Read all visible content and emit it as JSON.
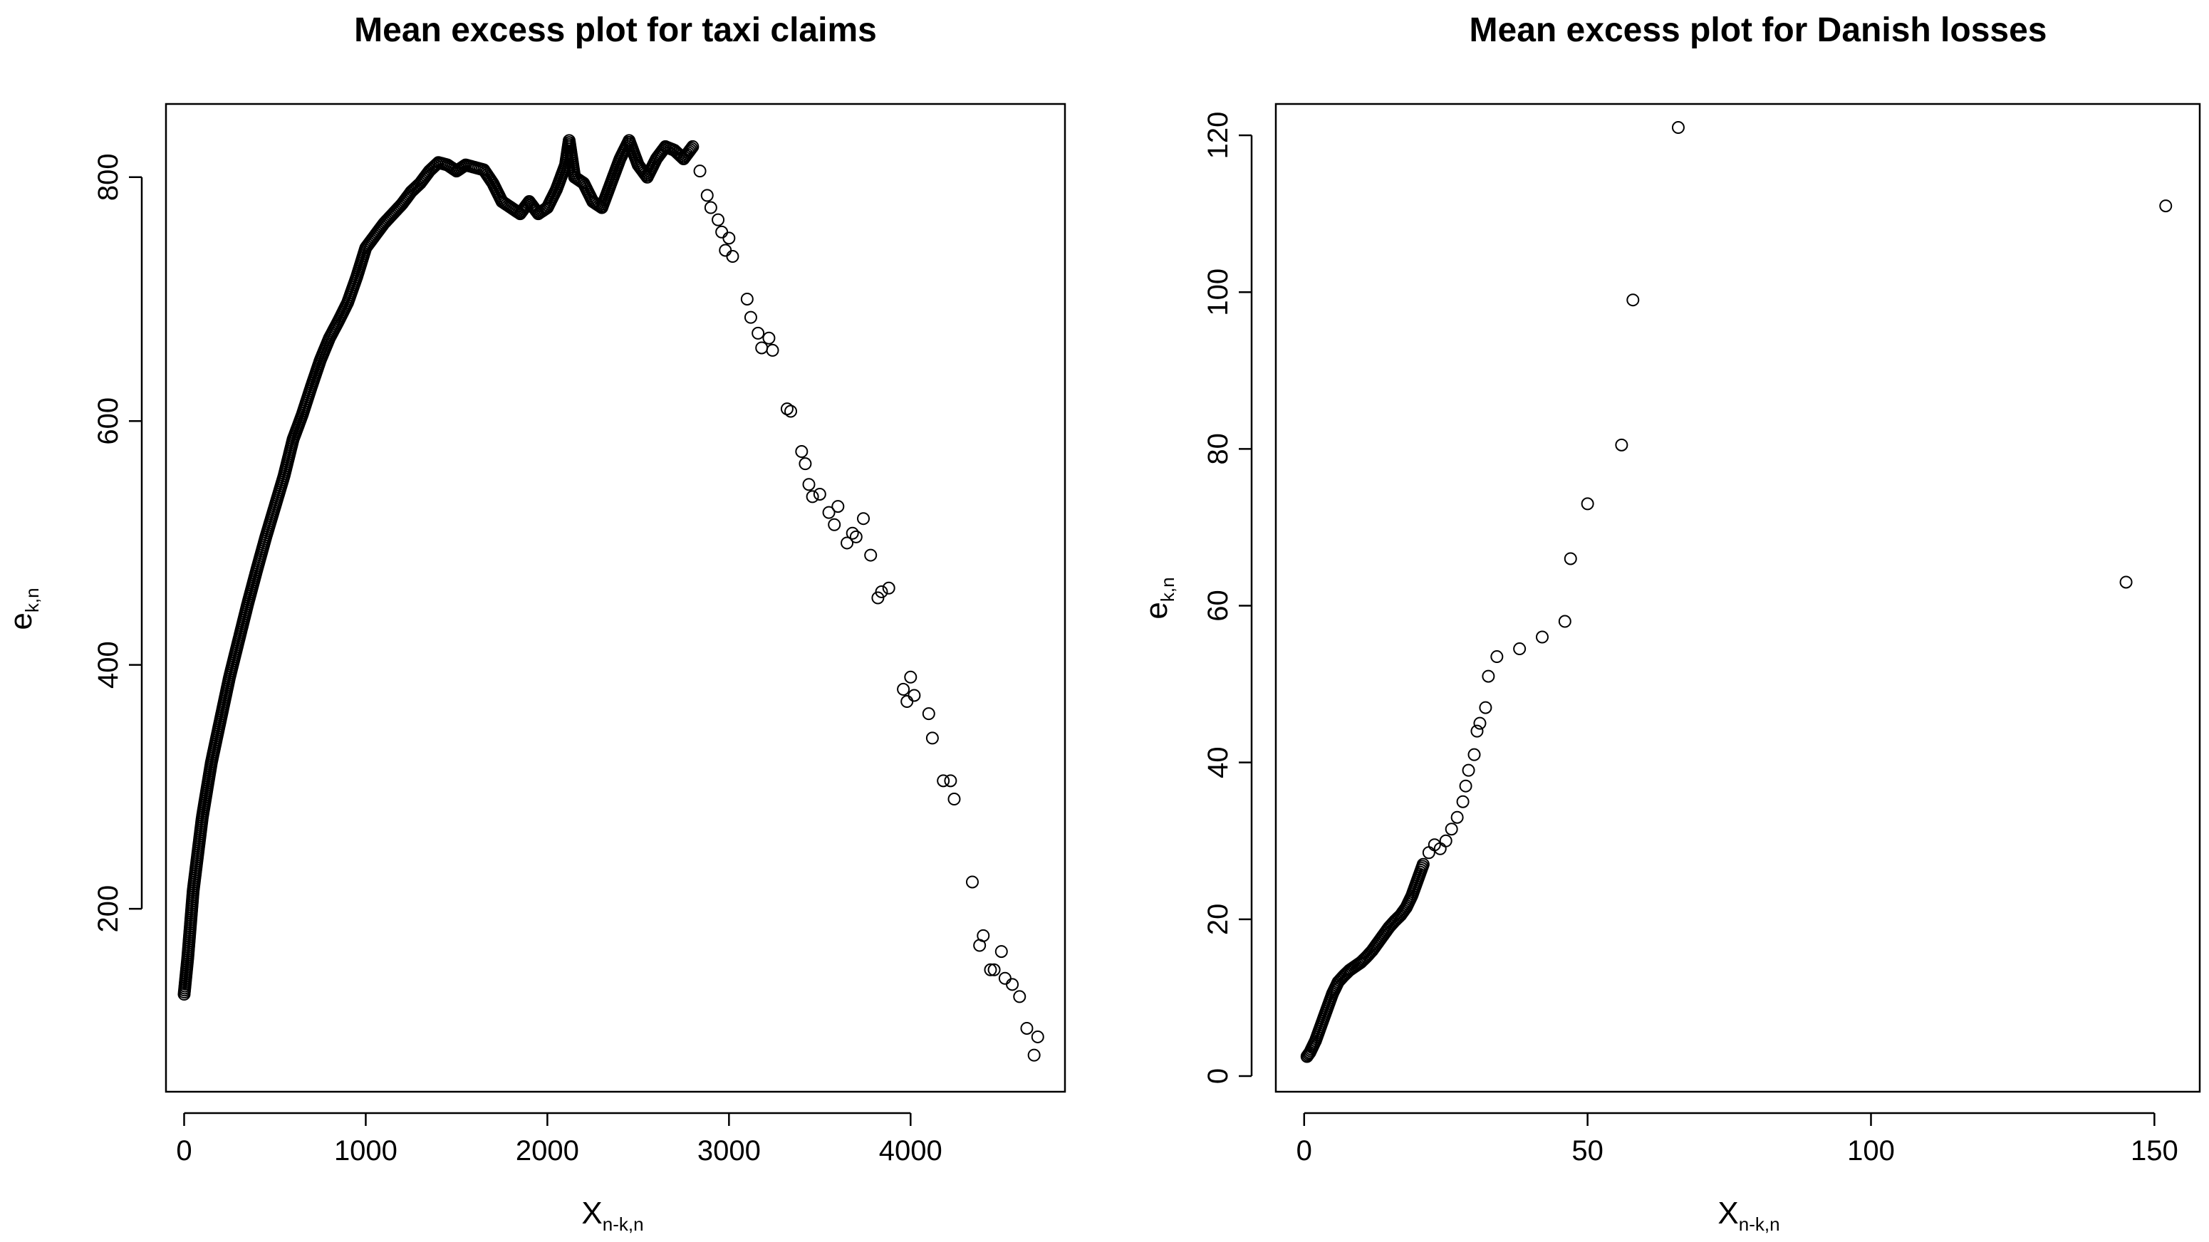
{
  "chart_data": [
    {
      "type": "scatter",
      "title": "Mean excess plot for taxi claims",
      "xlabel": "X",
      "xlabel_subscript": "n-k,n",
      "ylabel": "e",
      "ylabel_subscript": "k,n",
      "xlim": [
        -100,
        4850
      ],
      "ylim": [
        50,
        860
      ],
      "xticks": [
        0,
        1000,
        2000,
        3000,
        4000
      ],
      "xtick_labels": [
        "0",
        "1000",
        "2000",
        "3000",
        "4000"
      ],
      "yticks": [
        200,
        400,
        600,
        800
      ],
      "ytick_labels": [
        "200",
        "400",
        "600",
        "800"
      ],
      "series": [
        {
          "name": "mean excess",
          "curve": [
            [
              0,
              130
            ],
            [
              20,
              160
            ],
            [
              50,
              215
            ],
            [
              100,
              275
            ],
            [
              150,
              320
            ],
            [
              200,
              355
            ],
            [
              250,
              390
            ],
            [
              300,
              420
            ],
            [
              350,
              450
            ],
            [
              400,
              478
            ],
            [
              450,
              505
            ],
            [
              500,
              530
            ],
            [
              550,
              555
            ],
            [
              600,
              585
            ],
            [
              650,
              605
            ],
            [
              700,
              628
            ],
            [
              750,
              650
            ],
            [
              800,
              668
            ],
            [
              850,
              682
            ],
            [
              900,
              697
            ],
            [
              950,
              718
            ],
            [
              1000,
              742
            ],
            [
              1050,
              752
            ],
            [
              1100,
              762
            ],
            [
              1150,
              770
            ],
            [
              1200,
              778
            ],
            [
              1250,
              788
            ],
            [
              1300,
              795
            ],
            [
              1350,
              805
            ],
            [
              1400,
              812
            ],
            [
              1450,
              810
            ],
            [
              1500,
              805
            ],
            [
              1550,
              810
            ],
            [
              1600,
              808
            ],
            [
              1650,
              806
            ],
            [
              1700,
              795
            ],
            [
              1750,
              780
            ],
            [
              1800,
              775
            ],
            [
              1850,
              770
            ],
            [
              1900,
              780
            ],
            [
              1950,
              770
            ],
            [
              2000,
              775
            ],
            [
              2050,
              790
            ],
            [
              2100,
              810
            ],
            [
              2120,
              830
            ],
            [
              2150,
              800
            ],
            [
              2200,
              795
            ],
            [
              2250,
              780
            ],
            [
              2300,
              775
            ],
            [
              2350,
              795
            ],
            [
              2400,
              815
            ],
            [
              2450,
              830
            ],
            [
              2500,
              810
            ],
            [
              2550,
              800
            ],
            [
              2600,
              815
            ],
            [
              2650,
              825
            ],
            [
              2700,
              822
            ],
            [
              2750,
              815
            ],
            [
              2800,
              825
            ]
          ],
          "points": [
            [
              2840,
              805
            ],
            [
              2880,
              785
            ],
            [
              2900,
              775
            ],
            [
              2940,
              765
            ],
            [
              2960,
              755
            ],
            [
              2980,
              740
            ],
            [
              3000,
              750
            ],
            [
              3020,
              735
            ],
            [
              3100,
              700
            ],
            [
              3120,
              685
            ],
            [
              3160,
              672
            ],
            [
              3180,
              660
            ],
            [
              3220,
              668
            ],
            [
              3240,
              658
            ],
            [
              3320,
              610
            ],
            [
              3340,
              608
            ],
            [
              3400,
              575
            ],
            [
              3420,
              565
            ],
            [
              3440,
              548
            ],
            [
              3460,
              538
            ],
            [
              3500,
              540
            ],
            [
              3550,
              525
            ],
            [
              3580,
              515
            ],
            [
              3600,
              530
            ],
            [
              3650,
              500
            ],
            [
              3680,
              508
            ],
            [
              3700,
              505
            ],
            [
              3740,
              520
            ],
            [
              3780,
              490
            ],
            [
              3820,
              455
            ],
            [
              3840,
              460
            ],
            [
              3880,
              463
            ],
            [
              3960,
              380
            ],
            [
              3980,
              370
            ],
            [
              4000,
              390
            ],
            [
              4020,
              375
            ],
            [
              4100,
              360
            ],
            [
              4120,
              340
            ],
            [
              4180,
              305
            ],
            [
              4220,
              305
            ],
            [
              4240,
              290
            ],
            [
              4340,
              222
            ],
            [
              4380,
              170
            ],
            [
              4400,
              178
            ],
            [
              4440,
              150
            ],
            [
              4460,
              150
            ],
            [
              4500,
              165
            ],
            [
              4520,
              143
            ],
            [
              4560,
              138
            ],
            [
              4600,
              128
            ],
            [
              4640,
              102
            ],
            [
              4680,
              80
            ],
            [
              4700,
              95
            ]
          ]
        }
      ]
    },
    {
      "type": "scatter",
      "title": "Mean excess plot for Danish losses",
      "xlabel": "X",
      "xlabel_subscript": "n-k,n",
      "ylabel": "e",
      "ylabel_subscript": "k,n",
      "xlim": [
        -5,
        158
      ],
      "ylim": [
        -2,
        124
      ],
      "xticks": [
        0,
        50,
        100,
        150
      ],
      "xtick_labels": [
        "0",
        "50",
        "100",
        "150"
      ],
      "yticks": [
        0,
        20,
        40,
        60,
        80,
        100,
        120
      ],
      "ytick_labels": [
        "0",
        "20",
        "40",
        "60",
        "80",
        "100",
        "120"
      ],
      "series": [
        {
          "name": "mean excess",
          "curve": [
            [
              0.5,
              2.5
            ],
            [
              1,
              3
            ],
            [
              2,
              4.5
            ],
            [
              3,
              6.5
            ],
            [
              4,
              8.5
            ],
            [
              5,
              10.5
            ],
            [
              6,
              12
            ],
            [
              7,
              12.8
            ],
            [
              8,
              13.5
            ],
            [
              9,
              14
            ],
            [
              10,
              14.5
            ],
            [
              11,
              15.2
            ],
            [
              12,
              16
            ],
            [
              13,
              17
            ],
            [
              14,
              18
            ],
            [
              15,
              19
            ],
            [
              16,
              19.8
            ],
            [
              17,
              20.5
            ],
            [
              18,
              21.5
            ],
            [
              19,
              23
            ],
            [
              20,
              25
            ],
            [
              21,
              27
            ]
          ],
          "points": [
            [
              22,
              28.5
            ],
            [
              23,
              29.5
            ],
            [
              24,
              29
            ],
            [
              25,
              30
            ],
            [
              26,
              31.5
            ],
            [
              27,
              33
            ],
            [
              28,
              35
            ],
            [
              28.5,
              37
            ],
            [
              29,
              39
            ],
            [
              30,
              41
            ],
            [
              30.5,
              44
            ],
            [
              31,
              45
            ],
            [
              32,
              47
            ],
            [
              32.5,
              51
            ],
            [
              34,
              53.5
            ],
            [
              38,
              54.5
            ],
            [
              42,
              56
            ],
            [
              46,
              58
            ],
            [
              47,
              66
            ],
            [
              50,
              73
            ],
            [
              56,
              80.5
            ],
            [
              58,
              99
            ],
            [
              66,
              121
            ],
            [
              145,
              63
            ],
            [
              152,
              111
            ]
          ]
        }
      ]
    }
  ]
}
